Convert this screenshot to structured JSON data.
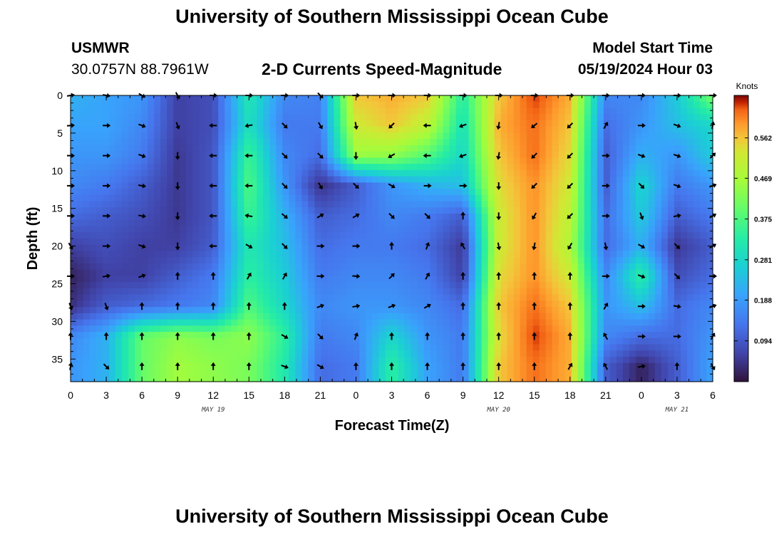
{
  "header": {
    "title": "University of Southern Mississippi Ocean Cube",
    "station_name": "USMWR",
    "station_coords": "30.0757N  88.7961W",
    "subtitle": "2-D Currents Speed-Magnitude",
    "model_start_label": "Model Start Time",
    "model_start_value": "05/19/2024 Hour 03"
  },
  "footer": {
    "title": "University of Southern Mississippi Ocean Cube"
  },
  "chart_data": {
    "type": "heatmap",
    "title": "2-D Currents Speed-Magnitude",
    "xlabel": "Forecast Time(Z)",
    "ylabel": "Depth (ft)",
    "x_tick_labels": [
      "0",
      "3",
      "6",
      "9",
      "12",
      "15",
      "18",
      "21",
      "0",
      "3",
      "6",
      "9",
      "12",
      "15",
      "18",
      "21",
      "0",
      "3",
      "6"
    ],
    "date_labels": [
      {
        "label": "MAY 19",
        "at_tick": 4
      },
      {
        "label": "MAY 20",
        "at_tick": 12
      },
      {
        "label": "MAY 21",
        "at_tick": 17
      }
    ],
    "y_ticks": [
      0,
      5,
      10,
      15,
      20,
      25,
      30,
      35
    ],
    "ylim": [
      0,
      38
    ],
    "xlim_hours": [
      0,
      54
    ],
    "colorbar": {
      "label": "Knots",
      "ticks": [
        "0.562",
        "0.469",
        "0.375",
        "0.281",
        "0.188",
        "0.094"
      ],
      "range": [
        0,
        0.66
      ]
    },
    "speed_grid": {
      "units": "knots",
      "time_hours": [
        0,
        3,
        6,
        9,
        12,
        15,
        18,
        21,
        24,
        27,
        30,
        33,
        36,
        39,
        42,
        45,
        48,
        51,
        54
      ],
      "depths_ft": [
        0,
        4,
        8,
        12,
        16,
        20,
        24,
        28,
        32,
        36
      ],
      "values": [
        [
          0.22,
          0.2,
          0.18,
          0.06,
          0.08,
          0.32,
          0.16,
          0.15,
          0.56,
          0.58,
          0.56,
          0.33,
          0.56,
          0.64,
          0.58,
          0.16,
          0.16,
          0.26,
          0.42
        ],
        [
          0.2,
          0.2,
          0.16,
          0.06,
          0.08,
          0.3,
          0.14,
          0.14,
          0.52,
          0.56,
          0.5,
          0.3,
          0.58,
          0.62,
          0.56,
          0.12,
          0.18,
          0.24,
          0.28
        ],
        [
          0.18,
          0.18,
          0.14,
          0.05,
          0.09,
          0.36,
          0.16,
          0.12,
          0.45,
          0.44,
          0.38,
          0.28,
          0.56,
          0.62,
          0.54,
          0.1,
          0.22,
          0.18,
          0.26
        ],
        [
          0.16,
          0.14,
          0.1,
          0.05,
          0.09,
          0.38,
          0.18,
          0.04,
          0.1,
          0.18,
          0.22,
          0.24,
          0.54,
          0.6,
          0.52,
          0.1,
          0.28,
          0.14,
          0.18
        ],
        [
          0.12,
          0.1,
          0.08,
          0.05,
          0.09,
          0.36,
          0.22,
          0.1,
          0.12,
          0.16,
          0.14,
          0.1,
          0.52,
          0.6,
          0.5,
          0.12,
          0.26,
          0.1,
          0.14
        ],
        [
          0.06,
          0.08,
          0.06,
          0.06,
          0.1,
          0.32,
          0.24,
          0.12,
          0.14,
          0.14,
          0.12,
          0.05,
          0.52,
          0.6,
          0.48,
          0.12,
          0.22,
          0.05,
          0.1
        ],
        [
          0.02,
          0.06,
          0.06,
          0.1,
          0.14,
          0.34,
          0.26,
          0.14,
          0.16,
          0.16,
          0.14,
          0.06,
          0.54,
          0.6,
          0.52,
          0.16,
          0.34,
          0.08,
          0.12
        ],
        [
          0.04,
          0.1,
          0.12,
          0.14,
          0.16,
          0.38,
          0.28,
          0.16,
          0.18,
          0.18,
          0.16,
          0.12,
          0.56,
          0.62,
          0.56,
          0.18,
          0.24,
          0.12,
          0.16
        ],
        [
          0.16,
          0.22,
          0.4,
          0.44,
          0.42,
          0.44,
          0.34,
          0.14,
          0.16,
          0.28,
          0.18,
          0.14,
          0.54,
          0.64,
          0.58,
          0.16,
          0.12,
          0.12,
          0.18
        ],
        [
          0.18,
          0.22,
          0.4,
          0.46,
          0.44,
          0.42,
          0.32,
          0.12,
          0.14,
          0.34,
          0.2,
          0.14,
          0.56,
          0.62,
          0.58,
          0.1,
          0.02,
          0.1,
          0.2
        ]
      ]
    },
    "arrow_directions_deg": {
      "note": "direction toward which the current flows, 0 = east (right), 90 = north (up)",
      "values": [
        [
          10,
          -10,
          -30,
          -60,
          0,
          0,
          0,
          -45,
          0,
          0,
          0,
          0,
          0,
          0,
          0,
          0,
          0,
          0,
          0
        ],
        [
          5,
          0,
          -20,
          -70,
          180,
          190,
          -45,
          -60,
          -80,
          -135,
          180,
          200,
          -100,
          -140,
          -135,
          60,
          0,
          -20,
          80
        ],
        [
          0,
          0,
          -20,
          -90,
          180,
          180,
          -45,
          -45,
          -90,
          -150,
          180,
          200,
          -100,
          -135,
          -135,
          0,
          -20,
          -20,
          45
        ],
        [
          0,
          0,
          -10,
          -90,
          180,
          180,
          -45,
          -60,
          -45,
          -30,
          0,
          0,
          -90,
          -135,
          -135,
          0,
          -45,
          -20,
          20
        ],
        [
          0,
          0,
          -10,
          -90,
          180,
          170,
          -40,
          30,
          30,
          -45,
          -45,
          90,
          -90,
          -120,
          -135,
          0,
          -70,
          10,
          30
        ],
        [
          -60,
          0,
          -20,
          -90,
          180,
          -30,
          -45,
          0,
          0,
          90,
          70,
          120,
          -80,
          -100,
          -120,
          -80,
          -30,
          -45,
          30
        ],
        [
          0,
          10,
          20,
          90,
          90,
          60,
          60,
          0,
          -5,
          45,
          60,
          90,
          90,
          90,
          90,
          0,
          -20,
          -45,
          0
        ],
        [
          -70,
          -70,
          90,
          90,
          90,
          90,
          90,
          20,
          10,
          20,
          30,
          90,
          90,
          90,
          90,
          60,
          0,
          -10,
          20
        ],
        [
          90,
          90,
          90,
          90,
          90,
          90,
          -30,
          -45,
          70,
          90,
          90,
          90,
          90,
          90,
          90,
          120,
          0,
          0,
          60
        ],
        [
          80,
          -45,
          90,
          90,
          90,
          90,
          -20,
          -30,
          90,
          90,
          90,
          90,
          90,
          90,
          60,
          120,
          10,
          90,
          -60
        ]
      ]
    },
    "grid": false,
    "legend": "colorbar-right"
  }
}
